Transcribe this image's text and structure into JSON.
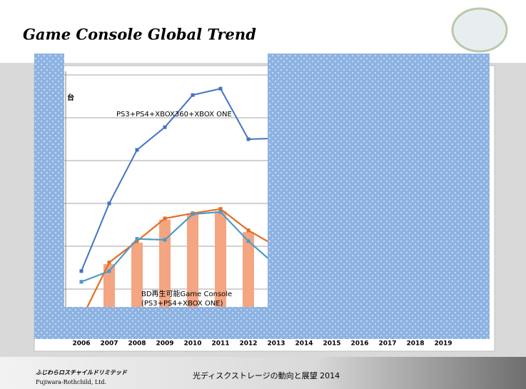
{
  "header": {
    "title": "Game Console Global Trend"
  },
  "chart_data": {
    "type": "line",
    "y_label": "台",
    "categories": [
      "2006",
      "2007",
      "2008",
      "2009",
      "2010",
      "2011",
      "2012",
      "2013",
      "2014",
      "2015",
      "2016",
      "2017",
      "2018",
      "2019"
    ],
    "series": [
      {
        "name": "PS3+PS4+XBOX360+XBOX ONE",
        "color": "#4472c4",
        "kind": "line",
        "values": [
          1.42,
          3.0,
          4.25,
          4.78,
          5.53,
          5.68,
          4.5,
          4.52,
          null,
          null,
          null,
          null,
          null,
          null
        ]
      },
      {
        "color": "#f4a582",
        "kind": "bar",
        "values": [
          null,
          1.58,
          2.08,
          2.62,
          2.75,
          2.82,
          2.33,
          null,
          null,
          null,
          null,
          null,
          null,
          null
        ]
      },
      {
        "color": "#e46c1e",
        "kind": "line",
        "values": [
          0.3,
          1.62,
          2.12,
          2.65,
          2.77,
          2.87,
          2.37,
          2.0,
          null,
          null,
          null,
          null,
          null,
          null
        ]
      },
      {
        "color": "#4a9bc9",
        "kind": "line",
        "values": [
          1.17,
          1.42,
          2.17,
          2.15,
          2.75,
          2.8,
          2.12,
          1.55,
          null,
          null,
          null,
          null,
          null,
          null
        ]
      }
    ],
    "annotations": [
      "BD再生可能Game Console",
      "(PS3+PS4+XBOX ONE)"
    ],
    "ylim": [
      0,
      6
    ],
    "yticks": [
      1,
      2,
      3,
      4,
      5,
      6
    ],
    "grid": true
  },
  "footer": {
    "company_jp": "ふじわらロスチャイルドリミテッド",
    "company_en": "Fujiwara-Rothchild, Ltd.",
    "caption": "光ディスクストレージの動向と展望 2014"
  }
}
